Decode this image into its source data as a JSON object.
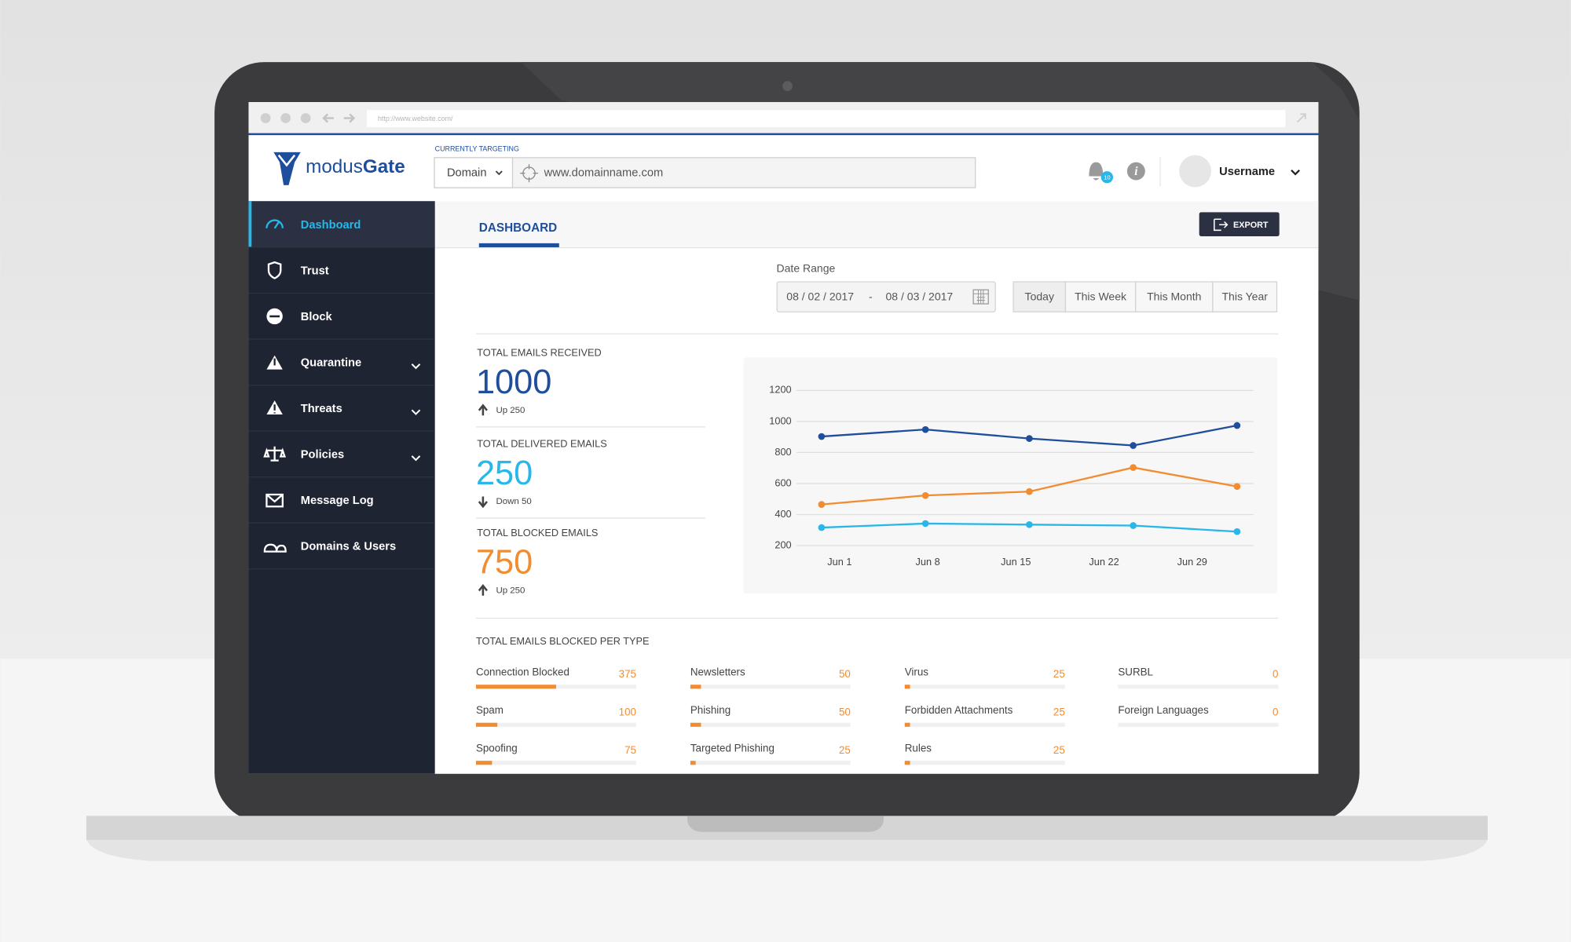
{
  "browser": {
    "url": "http://www.website.com/"
  },
  "header": {
    "brand_light": "modus",
    "brand_bold": "Gate",
    "targeting_label": "CURRENTLY TARGETING",
    "target_type": "Domain",
    "target_value": "www.domainname.com",
    "notifications": 10,
    "username": "Username"
  },
  "nav": [
    {
      "label": "Dashboard",
      "active": true,
      "expandable": false
    },
    {
      "label": "Trust",
      "active": false,
      "expandable": false
    },
    {
      "label": "Block",
      "active": false,
      "expandable": false
    },
    {
      "label": "Quarantine",
      "active": false,
      "expandable": true
    },
    {
      "label": "Threats",
      "active": false,
      "expandable": true
    },
    {
      "label": "Policies",
      "active": false,
      "expandable": true
    },
    {
      "label": "Message Log",
      "active": false,
      "expandable": false
    },
    {
      "label": "Domains & Users",
      "active": false,
      "expandable": false
    }
  ],
  "page": {
    "tab": "DASHBOARD",
    "export": "EXPORT"
  },
  "date_range": {
    "label": "Date Range",
    "from": "08 / 02 / 2017",
    "separator": "-",
    "to": "08 / 03 / 2017",
    "presets": [
      "Today",
      "This Week",
      "This Month",
      "This Year"
    ]
  },
  "stats": [
    {
      "title": "TOTAL EMAILS RECEIVED",
      "value": 1000,
      "change": "Up 250",
      "direction": "up",
      "color": "#1f4e9c"
    },
    {
      "title": "TOTAL DELIVERED EMAILS",
      "value": 250,
      "change": "Down 50",
      "direction": "down",
      "color": "#29b6e8"
    },
    {
      "title": "TOTAL BLOCKED EMAILS",
      "value": 750,
      "change": "Up 250",
      "direction": "up",
      "color": "#f28c30"
    }
  ],
  "chart_data": {
    "type": "line",
    "categories": [
      "Jun 1",
      "Jun 8",
      "Jun 15",
      "Jun 22",
      "Jun 29"
    ],
    "series": [
      {
        "color": "#1f4e9c",
        "values": [
          903,
          948,
          890,
          845,
          974
        ]
      },
      {
        "color": "#f28c30",
        "values": [
          465,
          523,
          548,
          703,
          581
        ]
      },
      {
        "color": "#29b6e8",
        "values": [
          316,
          342,
          335,
          329,
          290
        ]
      }
    ],
    "ylim": [
      200,
      1200
    ],
    "yticks": [
      200,
      400,
      600,
      800,
      1000,
      1200
    ],
    "grid": true
  },
  "blocked_types": {
    "title": "TOTAL EMAILS BLOCKED PER TYPE",
    "color": "#f28c30",
    "items": [
      {
        "name": "Connection Blocked",
        "value": 375
      },
      {
        "name": "Spam",
        "value": 100
      },
      {
        "name": "Spoofing",
        "value": 75
      },
      {
        "name": "Newsletters",
        "value": 50
      },
      {
        "name": "Phishing",
        "value": 50
      },
      {
        "name": "Targeted Phishing",
        "value": 25
      },
      {
        "name": "Virus",
        "value": 25
      },
      {
        "name": "Forbidden Attachments",
        "value": 25
      },
      {
        "name": "Rules",
        "value": 25
      },
      {
        "name": "SURBL",
        "value": 0
      },
      {
        "name": "Foreign Languages",
        "value": 0
      }
    ]
  }
}
